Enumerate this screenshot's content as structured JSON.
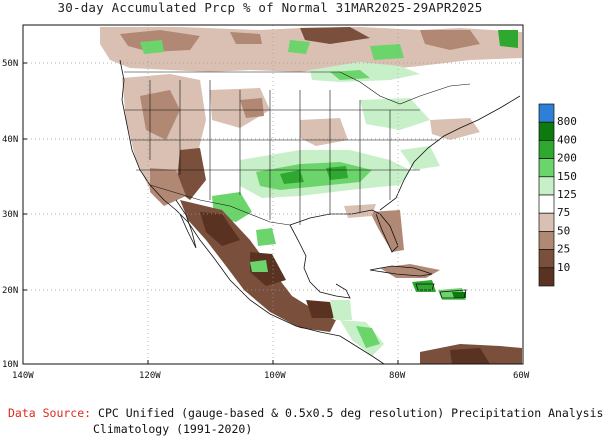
{
  "title": "30-day Accumulated Prcp % of Normal 31MAR2025-29APR2025",
  "axes": {
    "lat_labels": [
      "50N",
      "40N",
      "30N",
      "20N",
      "10N"
    ],
    "lon_labels": [
      "140W",
      "120W",
      "100W",
      "80W",
      "60W"
    ]
  },
  "legend": {
    "items": [
      {
        "label": "800",
        "color": "#2f7fd6"
      },
      {
        "label": "400",
        "color": "#0d7a0d"
      },
      {
        "label": "200",
        "color": "#2ea82e"
      },
      {
        "label": "150",
        "color": "#6bd46b"
      },
      {
        "label": "125",
        "color": "#c8f0c8"
      },
      {
        "label": "75",
        "color": "#ffffff"
      },
      {
        "label": "50",
        "color": "#d9c0b3"
      },
      {
        "label": "25",
        "color": "#b08874"
      },
      {
        "label": "10",
        "color": "#7a4f3b"
      },
      {
        "label": "",
        "color": "#5a3222"
      }
    ]
  },
  "source": {
    "label": "Data Source:",
    "line1": "CPC Unified (gauge-based & 0.5x0.5 deg resolution) Precipitation Analysis",
    "line2": "Climatology (1991-2020)"
  }
}
